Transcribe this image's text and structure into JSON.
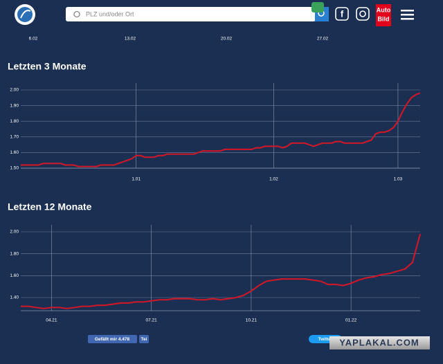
{
  "header": {
    "search_placeholder": "PLZ und/oder Ort",
    "brand_lines": [
      "Auto",
      "Bild"
    ]
  },
  "top_axis_labels": [
    "6.02",
    "13.02",
    "20.02",
    "27.02"
  ],
  "chart_data": [
    {
      "type": "line",
      "title": "Letzten 3 Monate",
      "categories": [
        null,
        null,
        null,
        null,
        null,
        null,
        null,
        null,
        null,
        null,
        null,
        null,
        null,
        null,
        null,
        null,
        null,
        null,
        null,
        null,
        null,
        null,
        null,
        null,
        null,
        null,
        "1.01",
        null,
        null,
        null,
        null,
        null,
        null,
        null,
        null,
        null,
        null,
        null,
        null,
        null,
        null,
        null,
        null,
        null,
        null,
        null,
        null,
        null,
        null,
        null,
        null,
        null,
        null,
        null,
        null,
        null,
        null,
        "1.02",
        null,
        null,
        null,
        null,
        null,
        null,
        null,
        null,
        null,
        null,
        null,
        null,
        null,
        null,
        null,
        null,
        null,
        null,
        null,
        null,
        null,
        null,
        null,
        null,
        null,
        null,
        null,
        "1.03",
        null,
        null,
        null,
        null,
        null
      ],
      "series": [
        {
          "color": "#c8192b",
          "values": [
            1.52,
            1.52,
            1.52,
            1.52,
            1.52,
            1.53,
            1.53,
            1.53,
            1.53,
            1.53,
            1.52,
            1.52,
            1.52,
            1.51,
            1.51,
            1.51,
            1.51,
            1.51,
            1.52,
            1.52,
            1.52,
            1.52,
            1.53,
            1.54,
            1.55,
            1.56,
            1.58,
            1.58,
            1.57,
            1.57,
            1.57,
            1.58,
            1.58,
            1.59,
            1.59,
            1.59,
            1.59,
            1.59,
            1.59,
            1.59,
            1.6,
            1.61,
            1.61,
            1.61,
            1.61,
            1.61,
            1.62,
            1.62,
            1.62,
            1.62,
            1.62,
            1.62,
            1.62,
            1.63,
            1.63,
            1.64,
            1.64,
            1.64,
            1.64,
            1.63,
            1.64,
            1.66,
            1.66,
            1.66,
            1.66,
            1.65,
            1.64,
            1.65,
            1.66,
            1.66,
            1.66,
            1.67,
            1.67,
            1.66,
            1.66,
            1.66,
            1.66,
            1.66,
            1.67,
            1.68,
            1.72,
            1.73,
            1.73,
            1.74,
            1.76,
            1.8,
            1.86,
            1.91,
            1.95,
            1.97,
            1.98
          ]
        }
      ],
      "ylim": [
        1.5,
        2.0
      ],
      "yticks": [
        {
          "value": 1.5,
          "label": "1.50"
        },
        {
          "value": 1.6,
          "label": "1.60"
        },
        {
          "value": 1.7,
          "label": "1.70"
        },
        {
          "value": 1.8,
          "label": "1.80"
        },
        {
          "value": 1.9,
          "label": "1.90"
        },
        {
          "value": 2.0,
          "label": "2.00"
        }
      ],
      "grid": true
    },
    {
      "type": "line",
      "title": "Letzten 12 Monate",
      "categories": [
        null,
        null,
        null,
        null,
        "04.21",
        null,
        null,
        null,
        null,
        null,
        null,
        null,
        null,
        null,
        null,
        null,
        null,
        "07.21",
        null,
        null,
        null,
        null,
        null,
        null,
        null,
        null,
        null,
        null,
        null,
        null,
        "10.21",
        null,
        null,
        null,
        null,
        null,
        null,
        null,
        null,
        null,
        null,
        null,
        null,
        "01.22",
        null,
        null,
        null,
        null,
        null,
        null,
        null,
        null,
        null
      ],
      "series": [
        {
          "color": "#c8192b",
          "values": [
            1.32,
            1.32,
            1.31,
            1.3,
            1.31,
            1.31,
            1.3,
            1.31,
            1.32,
            1.32,
            1.33,
            1.33,
            1.34,
            1.35,
            1.35,
            1.36,
            1.36,
            1.37,
            1.38,
            1.38,
            1.39,
            1.39,
            1.39,
            1.38,
            1.38,
            1.39,
            1.38,
            1.39,
            1.4,
            1.42,
            1.46,
            1.51,
            1.55,
            1.56,
            1.57,
            1.57,
            1.57,
            1.57,
            1.56,
            1.55,
            1.52,
            1.52,
            1.51,
            1.53,
            1.56,
            1.58,
            1.59,
            1.61,
            1.62,
            1.64,
            1.66,
            1.72,
            1.98
          ]
        }
      ],
      "ylim": [
        1.28,
        2.0
      ],
      "yticks": [
        {
          "value": 1.4,
          "label": "1.40"
        },
        {
          "value": 1.6,
          "label": "1.60"
        },
        {
          "value": 1.8,
          "label": "1.80"
        },
        {
          "value": 2.0,
          "label": "2.00"
        }
      ],
      "grid": true
    }
  ],
  "social": {
    "like": "Gefällt mir 4.478",
    "share": "Tei",
    "tweet": "Twittern"
  },
  "watermark": "YAPLAKAL.COM"
}
